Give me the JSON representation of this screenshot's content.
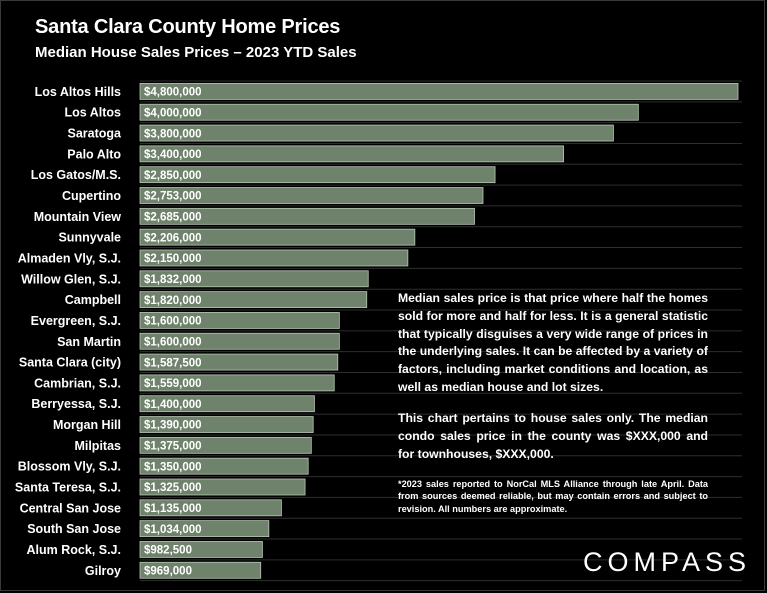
{
  "header": {
    "title": "Santa Clara County Home Prices",
    "subtitle": "Median House Sales Prices – 2023 YTD Sales"
  },
  "note": {
    "paragraph1": "Median sales price is that price where half the homes sold for more and half for less. It is a general statistic that typically disguises a very wide range of prices in the underlying sales. It can be affected by a variety of factors, including market conditions and location, as well as median house and lot sizes.",
    "paragraph2": "This chart pertains to house sales only. The median condo sales price in the county was $XXX,000 and for townhouses, $XXX,000.",
    "footnote": "*2023 sales reported to NorCal MLS Alliance through late April. Data from sources deemed reliable, but may contain errors and subject to revision. All numbers are approximate."
  },
  "logo": {
    "text": "COMPASS"
  },
  "colors": {
    "background": "#000000",
    "bar": "#6f826c",
    "bar_border": "#b9c6b6",
    "gridline": "#2e2e2e"
  },
  "chart_data": {
    "type": "bar",
    "orientation": "horizontal",
    "title": "Santa Clara County Home Prices",
    "subtitle": "Median House Sales Prices – 2023 YTD Sales",
    "xlabel": "",
    "ylabel": "",
    "xlim": [
      0,
      4800000
    ],
    "grid": true,
    "categories": [
      "Los Altos Hills",
      "Los Altos",
      "Saratoga",
      "Palo Alto",
      "Los Gatos/M.S.",
      "Cupertino",
      "Mountain View",
      "Sunnyvale",
      "Almaden Vly, S.J.",
      "Willow Glen, S.J.",
      "Campbell",
      "Evergreen, S.J.",
      "San Martin",
      "Santa Clara (city)",
      "Cambrian, S.J.",
      "Berryessa, S.J.",
      "Morgan Hill",
      "Milpitas",
      "Blossom Vly, S.J.",
      "Santa Teresa, S.J.",
      "Central San Jose",
      "South San Jose",
      "Alum Rock, S.J.",
      "Gilroy"
    ],
    "values": [
      4800000,
      4000000,
      3800000,
      3400000,
      2850000,
      2753000,
      2685000,
      2206000,
      2150000,
      1832000,
      1820000,
      1600000,
      1600000,
      1587500,
      1559000,
      1400000,
      1390000,
      1375000,
      1350000,
      1325000,
      1135000,
      1034000,
      982500,
      969000
    ],
    "value_labels": [
      "$4,800,000",
      "$4,000,000",
      "$3,800,000",
      "$3,400,000",
      "$2,850,000",
      "$2,753,000",
      "$2,685,000",
      "$2,206,000",
      "$2,150,000",
      "$1,832,000",
      "$1,820,000",
      "$1,600,000",
      "$1,600,000",
      "$1,587,500",
      "$1,559,000",
      "$1,400,000",
      "$1,390,000",
      "$1,375,000",
      "$1,350,000",
      "$1,325,000",
      "$1,135,000",
      "$1,034,000",
      "$982,500",
      "$969,000"
    ]
  }
}
